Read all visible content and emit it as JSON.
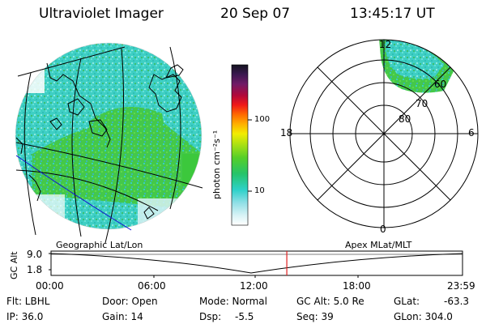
{
  "header": {
    "instrument": "Ultraviolet Imager",
    "date": "20 Sep 07",
    "time": "13:45:17 UT"
  },
  "colorbar": {
    "unit_label": "photon cm⁻²s⁻¹",
    "ticks": [
      "100",
      "10"
    ]
  },
  "polar": {
    "mlt_labels": {
      "top": "12",
      "left": "18",
      "right": "6",
      "bottom": "0"
    },
    "lat_labels": [
      "60",
      "70",
      "80"
    ]
  },
  "map_labels": {
    "left": "Geographic Lat/Lon",
    "right": "Apex MLat/MLT"
  },
  "altitude_plot": {
    "axis_label": "GC Alt",
    "y_ticks": [
      "9.0",
      "1.8"
    ],
    "x_ticks": [
      "00:00",
      "06:00",
      "12:00",
      "18:00",
      "23:59"
    ],
    "current_time_fraction": 0.573
  },
  "status": {
    "flt": "Flt: LBHL",
    "ip": "IP: 36.0",
    "door": "Door: Open",
    "gain": "Gain: 14",
    "mode": "Mode: Normal",
    "dsp_label": "Dsp:",
    "dsp_value": "-5.5",
    "gc_alt": "GC Alt: 5.0 Re",
    "seq": "Seq: 39",
    "glat_label": "GLat:",
    "glat_value": "-63.3",
    "glon": "GLon: 304.0"
  },
  "colors": {
    "aurora_cyan": "#33d6cc",
    "aurora_green": "#3cc83c",
    "marker_red": "#e02020",
    "grid_blue": "#1010d0"
  }
}
